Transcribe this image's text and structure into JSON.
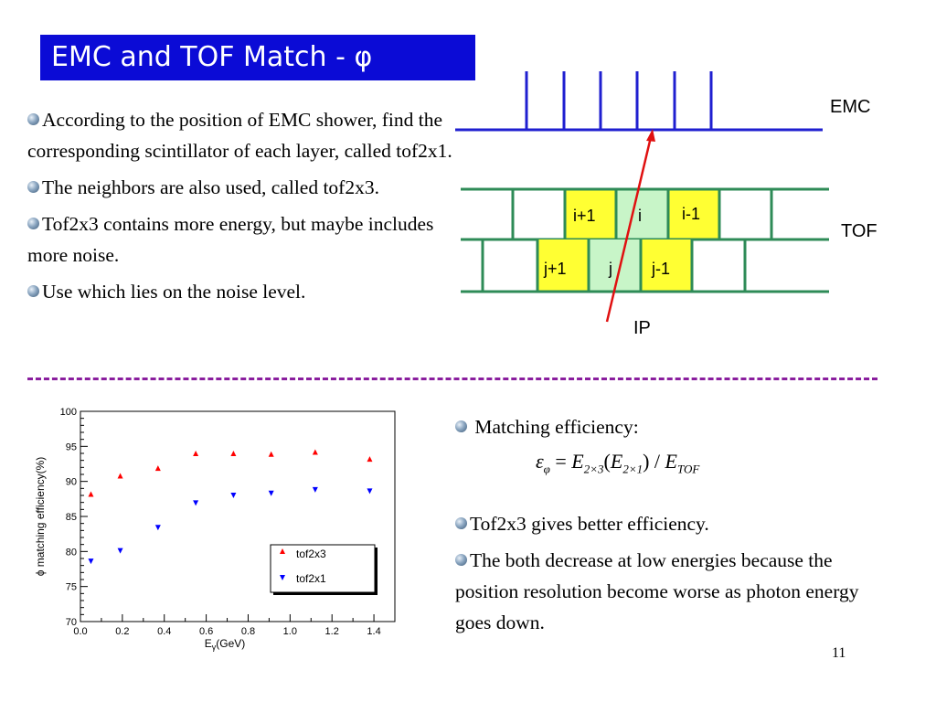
{
  "slide": {
    "title": "EMC and TOF Match - φ",
    "page_number": "11"
  },
  "left_bullets": [
    "According to the position of EMC shower, find the corresponding scintillator of each layer, called tof2x1.",
    "The neighbors are also used, called tof2x3.",
    "Tof2x3 contains more energy, but maybe includes more noise.",
    "Use which lies on the noise level."
  ],
  "diagram": {
    "emc_label": "EMC",
    "tof_label": "TOF",
    "ip_label": "IP",
    "upper_cells": [
      "i+1",
      "i",
      "i-1"
    ],
    "lower_cells": [
      "j+1",
      "j",
      "j-1"
    ],
    "colors": {
      "emc": "#1f1fd0",
      "tof_lines": "#2e8b57",
      "highlight_outer": "#ffff33",
      "highlight_center": "#c8f5c8",
      "track": "#e01010"
    }
  },
  "right_col": {
    "heading": "Matching efficiency:",
    "formula": {
      "lhs": "ε",
      "lhs_sub": "φ",
      "eq": "=",
      "e1": "E",
      "e1_sub": "2×3",
      "lp": "(",
      "e2": "E",
      "e2_sub": "2×1",
      "rp": ")",
      "slash": "/",
      "e3": "E",
      "e3_sub": "TOF"
    },
    "bullets": [
      "Tof2x3 gives better efficiency.",
      "The both decrease at low energies because the position resolution become worse as photon energy goes down."
    ]
  },
  "chart_data": {
    "type": "scatter",
    "ylabel": "ϕ matching efficiency(%)",
    "xlabel_main": "E",
    "xlabel_sub": "γ",
    "xlabel_unit": "(GeV)",
    "xlim": [
      0.0,
      1.5
    ],
    "ylim": [
      70,
      100
    ],
    "xticks": [
      "0.0",
      "0.2",
      "0.4",
      "0.6",
      "0.8",
      "1.0",
      "1.2",
      "1.4"
    ],
    "yticks": [
      "70",
      "75",
      "80",
      "85",
      "90",
      "95",
      "100"
    ],
    "series": [
      {
        "name": "tof2x3",
        "marker": "triangle-up",
        "color": "#ff0000",
        "x": [
          0.05,
          0.19,
          0.37,
          0.55,
          0.73,
          0.91,
          1.12,
          1.38
        ],
        "y": [
          88.2,
          90.8,
          91.9,
          94.0,
          94.0,
          93.9,
          94.2,
          93.2
        ]
      },
      {
        "name": "tof2x1",
        "marker": "triangle-down",
        "color": "#0000ff",
        "x": [
          0.05,
          0.19,
          0.37,
          0.55,
          0.73,
          0.91,
          1.12,
          1.38
        ],
        "y": [
          78.6,
          80.1,
          83.4,
          86.9,
          88.0,
          88.3,
          88.8,
          88.6
        ]
      }
    ],
    "legend_placement": "bottom-right"
  }
}
